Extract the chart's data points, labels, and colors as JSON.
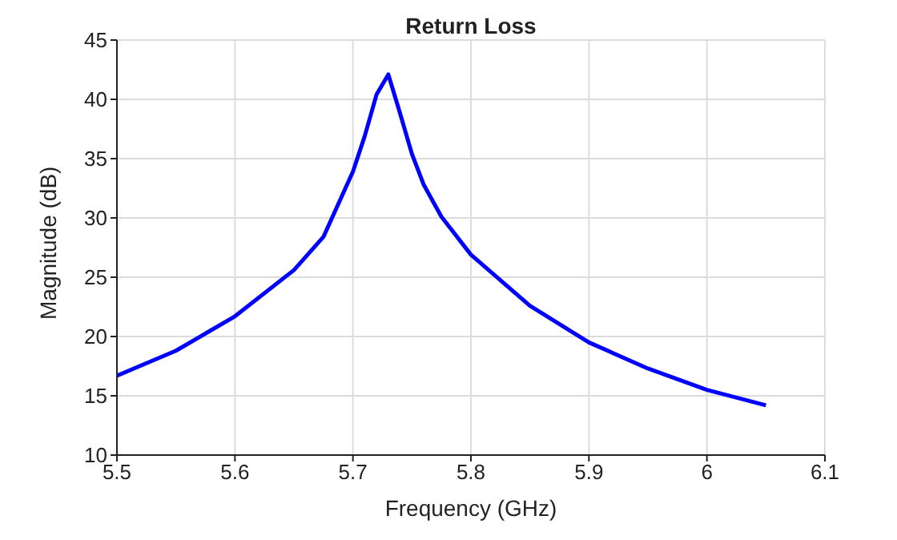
{
  "chart_data": {
    "type": "line",
    "title": "Return Loss",
    "xlabel": "Frequency (GHz)",
    "ylabel": "Magnitude (dB)",
    "x": [
      5.5,
      5.55,
      5.6,
      5.65,
      5.675,
      5.7,
      5.71,
      5.72,
      5.73,
      5.74,
      5.75,
      5.76,
      5.775,
      5.8,
      5.85,
      5.9,
      5.95,
      6.0,
      6.05
    ],
    "series": [
      {
        "color": "#0000ff",
        "values": [
          16.7,
          18.8,
          21.7,
          25.6,
          28.4,
          33.9,
          36.9,
          40.4,
          42.1,
          38.8,
          35.4,
          32.8,
          30.1,
          26.9,
          22.6,
          19.5,
          17.3,
          15.5,
          14.2
        ]
      }
    ],
    "xlim": [
      5.5,
      6.1
    ],
    "xticks": [
      5.5,
      5.6,
      5.7,
      5.8,
      5.9,
      6,
      6.1
    ],
    "ylim": [
      10,
      45
    ],
    "yticks": [
      10,
      15,
      20,
      25,
      30,
      35,
      40,
      45
    ],
    "grid": true,
    "marker": "none",
    "line_style": "solid"
  }
}
